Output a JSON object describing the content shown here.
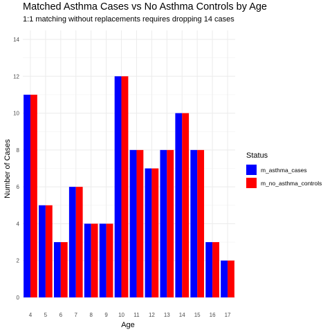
{
  "chart_data": {
    "type": "bar",
    "title": "Matched Asthma Cases vs No Asthma Controls by Age",
    "subtitle": "1:1 matching without replacements requires dropping 14 cases",
    "xlabel": "Age",
    "ylabel": "Number of Cases",
    "categories": [
      "4",
      "5",
      "6",
      "7",
      "8",
      "9",
      "10",
      "11",
      "12",
      "13",
      "14",
      "15",
      "16",
      "17"
    ],
    "series": [
      {
        "name": "m_asthma_cases",
        "color": "#0000ff",
        "values": [
          11,
          5,
          3,
          6,
          4,
          4,
          12,
          8,
          7,
          8,
          10,
          8,
          3,
          2
        ]
      },
      {
        "name": "m_no_asthma_controls",
        "color": "#ff0000",
        "values": [
          11,
          5,
          3,
          6,
          4,
          4,
          12,
          8,
          7,
          8,
          10,
          8,
          3,
          2
        ]
      }
    ],
    "ylim": [
      0,
      14
    ],
    "yticks": [
      0,
      2,
      4,
      6,
      8,
      10,
      12,
      14
    ],
    "grid": true,
    "legend": {
      "title": "Status",
      "position": "right"
    }
  }
}
